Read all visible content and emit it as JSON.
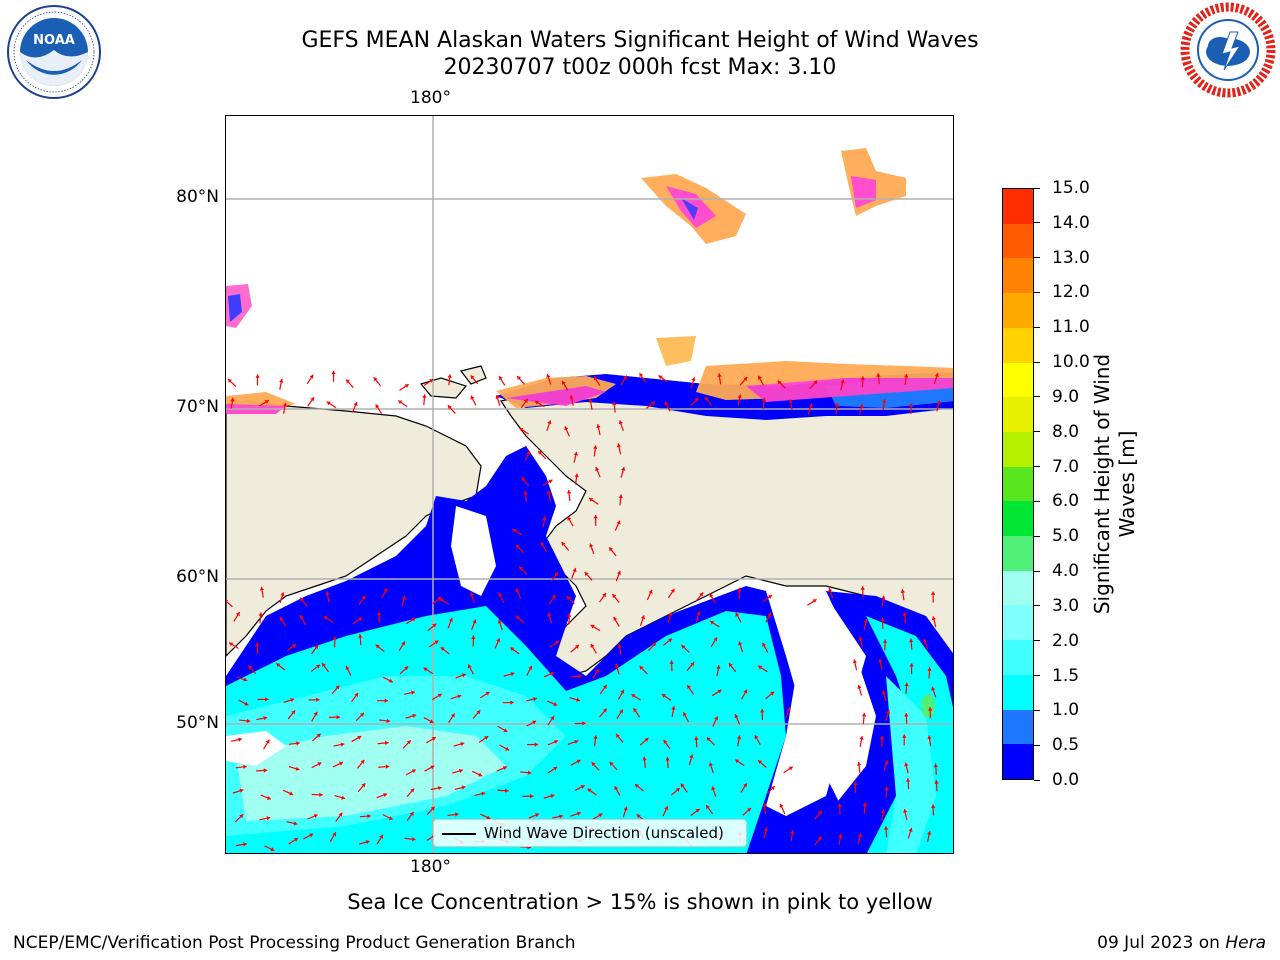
{
  "header": {
    "title_line1": "GEFS MEAN Alaskan Waters Significant Height of Wind Waves",
    "title_line2": "20230707 t00z 000h fcst   Max: 3.10"
  },
  "logos": {
    "left": {
      "icon": "noaa-logo-icon",
      "text": "NOAA"
    },
    "right": {
      "icon": "nws-logo-icon",
      "text": "NATIONAL WEATHER SERVICE"
    }
  },
  "map": {
    "lon_label_top": "180°",
    "lon_label_bottom": "180°",
    "lat_labels": [
      "80°N",
      "70°N",
      "60°N",
      "50°N"
    ],
    "legend_label": "Wind Wave Direction (unscaled)",
    "colors": {
      "land": "#efecdc",
      "grid": "#b0b0b0",
      "arrow": "#ff0000"
    }
  },
  "colorbar": {
    "label": "Significant Height of Wind Waves [m]",
    "ticks": [
      "0.0",
      "0.5",
      "1.0",
      "1.5",
      "2.0",
      "3.0",
      "4.0",
      "5.0",
      "6.0",
      "7.0",
      "8.0",
      "9.0",
      "10.0",
      "11.0",
      "12.0",
      "13.0",
      "14.0",
      "15.0"
    ],
    "colors": [
      "#0000ff",
      "#1e78ff",
      "#00ffff",
      "#40ffff",
      "#80ffff",
      "#a0fff0",
      "#50f078",
      "#00e632",
      "#5ae61e",
      "#b4f000",
      "#e6f000",
      "#ffff00",
      "#ffd200",
      "#ffaa00",
      "#ff8200",
      "#ff5a00",
      "#ff2d00",
      "#ff0000"
    ]
  },
  "footer": {
    "note": "Sea Ice Concentration > 15% is shown in pink to yellow",
    "left": "NCEP/EMC/Verification Post Processing Product Generation Branch",
    "date": "09 Jul 2023 on ",
    "host": "Hera"
  }
}
